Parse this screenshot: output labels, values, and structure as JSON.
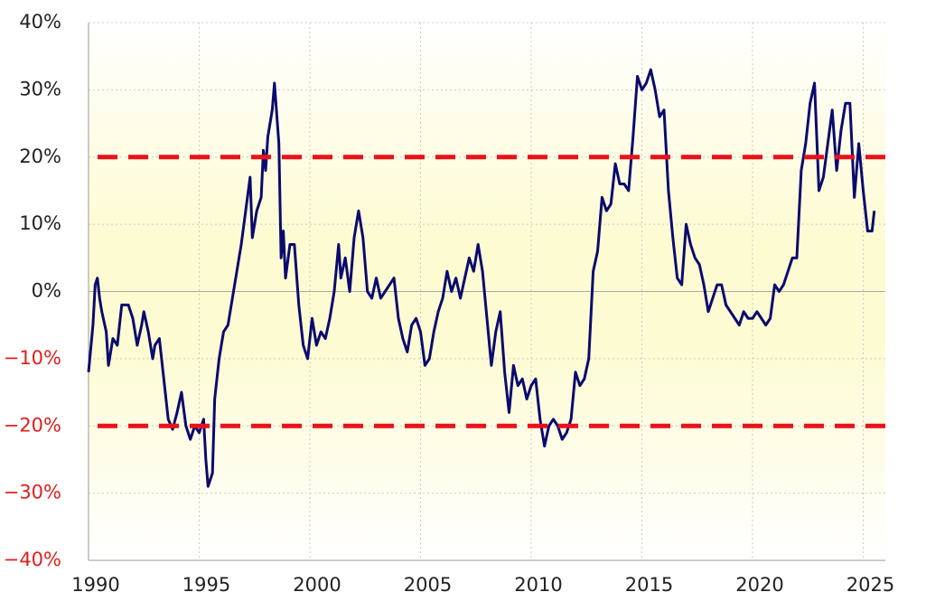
{
  "chart_data": {
    "type": "line",
    "xlim": [
      1990,
      2026
    ],
    "xticks": [
      1990,
      1995,
      2000,
      2005,
      2010,
      2015,
      2020,
      2025
    ],
    "ylim": [
      -40,
      40
    ],
    "yticks": [
      {
        "value": -40,
        "label": "−40%"
      },
      {
        "value": -30,
        "label": "−30%"
      },
      {
        "value": -20,
        "label": "−20%"
      },
      {
        "value": -10,
        "label": "−10%"
      },
      {
        "value": 0,
        "label": "0%"
      },
      {
        "value": 10,
        "label": "10%"
      },
      {
        "value": 20,
        "label": "20%"
      },
      {
        "value": 30,
        "label": "30%"
      },
      {
        "value": 40,
        "label": "40%"
      }
    ],
    "grid": true,
    "tick_color": "#222222",
    "negative_tick_color": "#e0201c",
    "reference_lines": {
      "values": [
        20,
        -20
      ],
      "color": "#e8121b"
    },
    "x": [
      1990.0,
      1990.2,
      1990.3,
      1990.4,
      1990.5,
      1990.6,
      1990.8,
      1990.9,
      1991.1,
      1991.3,
      1991.5,
      1991.8,
      1992.0,
      1992.2,
      1992.4,
      1992.5,
      1992.7,
      1992.9,
      1993.0,
      1993.2,
      1993.4,
      1993.6,
      1993.8,
      1994.0,
      1994.2,
      1994.4,
      1994.6,
      1994.8,
      1995.0,
      1995.2,
      1995.3,
      1995.4,
      1995.6,
      1995.7,
      1995.9,
      1996.1,
      1996.3,
      1996.5,
      1996.7,
      1996.9,
      1997.1,
      1997.3,
      1997.4,
      1997.6,
      1997.8,
      1997.9,
      1998.0,
      1998.1,
      1998.3,
      1998.4,
      1998.6,
      1998.7,
      1998.8,
      1998.9,
      1999.1,
      1999.3,
      1999.5,
      1999.7,
      1999.9,
      2000.1,
      2000.3,
      2000.5,
      2000.7,
      2000.9,
      2001.1,
      2001.3,
      2001.4,
      2001.6,
      2001.8,
      2002.0,
      2002.2,
      2002.4,
      2002.6,
      2002.8,
      2003.0,
      2003.2,
      2003.4,
      2003.6,
      2003.8,
      2004.0,
      2004.2,
      2004.4,
      2004.6,
      2004.8,
      2005.0,
      2005.2,
      2005.4,
      2005.6,
      2005.8,
      2006.0,
      2006.2,
      2006.4,
      2006.6,
      2006.8,
      2007.0,
      2007.2,
      2007.4,
      2007.6,
      2007.8,
      2008.0,
      2008.2,
      2008.4,
      2008.6,
      2008.8,
      2009.0,
      2009.2,
      2009.4,
      2009.6,
      2009.8,
      2010.0,
      2010.2,
      2010.4,
      2010.6,
      2010.8,
      2011.0,
      2011.2,
      2011.4,
      2011.6,
      2011.8,
      2012.0,
      2012.2,
      2012.4,
      2012.6,
      2012.8,
      2013.0,
      2013.2,
      2013.4,
      2013.6,
      2013.8,
      2014.0,
      2014.2,
      2014.4,
      2014.6,
      2014.8,
      2015.0,
      2015.2,
      2015.4,
      2015.6,
      2015.8,
      2016.0,
      2016.2,
      2016.4,
      2016.6,
      2016.8,
      2017.0,
      2017.2,
      2017.4,
      2017.6,
      2017.8,
      2018.0,
      2018.2,
      2018.4,
      2018.6,
      2018.8,
      2019.0,
      2019.2,
      2019.4,
      2019.6,
      2019.8,
      2020.0,
      2020.2,
      2020.4,
      2020.6,
      2020.8,
      2021.0,
      2021.2,
      2021.4,
      2021.6,
      2021.8,
      2022.0,
      2022.2,
      2022.4,
      2022.6,
      2022.8,
      2023.0,
      2023.2,
      2023.4,
      2023.6,
      2023.8,
      2024.0,
      2024.2,
      2024.4,
      2024.6,
      2024.8,
      2025.0,
      2025.2,
      2025.4,
      2025.5
    ],
    "series": [
      {
        "color": "#0a0a6e",
        "values": [
          -12,
          -5,
          1,
          2,
          -1,
          -3,
          -6,
          -11,
          -7,
          -8,
          -2,
          -2,
          -4,
          -8,
          -5,
          -3,
          -6,
          -10,
          -8,
          -7,
          -13,
          -19,
          -20.5,
          -18,
          -15,
          -20,
          -22,
          -20,
          -21,
          -19,
          -25,
          -29,
          -27,
          -16,
          -10,
          -6,
          -5,
          -1,
          3,
          7,
          12,
          17,
          8,
          12,
          14,
          21,
          18,
          23,
          27,
          31,
          22,
          5,
          9,
          2,
          7,
          7,
          -2,
          -8,
          -10,
          -4,
          -8,
          -6,
          -7,
          -4,
          0,
          7,
          2,
          5,
          0,
          8,
          12,
          8,
          0,
          -1,
          2,
          -1,
          0,
          1,
          2,
          -4,
          -7,
          -9,
          -5,
          -4,
          -6,
          -11,
          -10,
          -6,
          -3,
          -1,
          3,
          0,
          2,
          -1,
          2,
          5,
          3,
          7,
          3,
          -4,
          -11,
          -6,
          -3,
          -12,
          -18,
          -11,
          -14,
          -13,
          -16,
          -14,
          -13,
          -19,
          -23,
          -20,
          -19,
          -20,
          -22,
          -21,
          -19,
          -12,
          -14,
          -13,
          -10,
          3,
          6,
          14,
          12,
          13,
          19,
          16,
          16,
          15,
          23,
          32,
          30,
          31,
          33,
          30,
          26,
          27,
          15,
          8,
          2,
          1,
          10,
          7,
          5,
          4,
          1,
          -3,
          -1,
          1,
          1,
          -2,
          -3,
          -4,
          -5,
          -3,
          -4,
          -4,
          -3,
          -4,
          -5,
          -4,
          1,
          0,
          1,
          3,
          5,
          5,
          18,
          22,
          28,
          31,
          15,
          17,
          22,
          27,
          18,
          24,
          28,
          28,
          14,
          22,
          15,
          9,
          9,
          12
        ]
      }
    ]
  }
}
